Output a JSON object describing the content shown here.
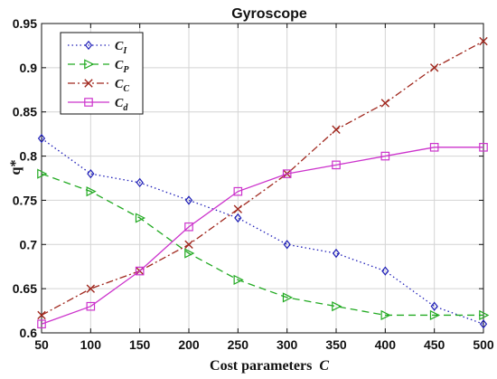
{
  "chart_data": {
    "type": "line",
    "title": "Gyroscope",
    "xlabel": "Cost parameters",
    "xlabel_var": "C",
    "ylabel": "q*",
    "x": [
      50,
      100,
      150,
      200,
      250,
      300,
      350,
      400,
      450,
      500
    ],
    "xlim": [
      50,
      500
    ],
    "ylim": [
      0.6,
      0.95
    ],
    "xticks": [
      "50",
      "100",
      "150",
      "200",
      "250",
      "300",
      "350",
      "400",
      "450",
      "500"
    ],
    "yticks": [
      "0.6",
      "0.65",
      "0.7",
      "0.75",
      "0.8",
      "0.85",
      "0.9",
      "0.95"
    ],
    "grid": true,
    "legend_position": "top-left",
    "series": [
      {
        "name": "C_I",
        "label_main": "C",
        "label_sub": "I",
        "values": [
          0.82,
          0.78,
          0.77,
          0.75,
          0.73,
          0.7,
          0.69,
          0.67,
          0.63,
          0.61
        ],
        "color": "#1f1fb8",
        "line_style": "dotted",
        "marker": "diamond"
      },
      {
        "name": "C_P",
        "label_main": "C",
        "label_sub": "P",
        "values": [
          0.78,
          0.76,
          0.73,
          0.69,
          0.66,
          0.64,
          0.63,
          0.62,
          0.62,
          0.62
        ],
        "color": "#22aa22",
        "line_style": "dashed",
        "marker": "triangle-right"
      },
      {
        "name": "C_C",
        "label_main": "C",
        "label_sub": "C",
        "values": [
          0.62,
          0.65,
          0.67,
          0.7,
          0.74,
          0.78,
          0.83,
          0.86,
          0.9,
          0.93
        ],
        "color": "#a0281e",
        "line_style": "dash-dot",
        "marker": "x"
      },
      {
        "name": "C_d",
        "label_main": "C",
        "label_sub": "d",
        "values": [
          0.61,
          0.63,
          0.67,
          0.72,
          0.76,
          0.78,
          0.79,
          0.8,
          0.81,
          0.81
        ],
        "color": "#cc33cc",
        "line_style": "solid",
        "marker": "square"
      }
    ]
  }
}
